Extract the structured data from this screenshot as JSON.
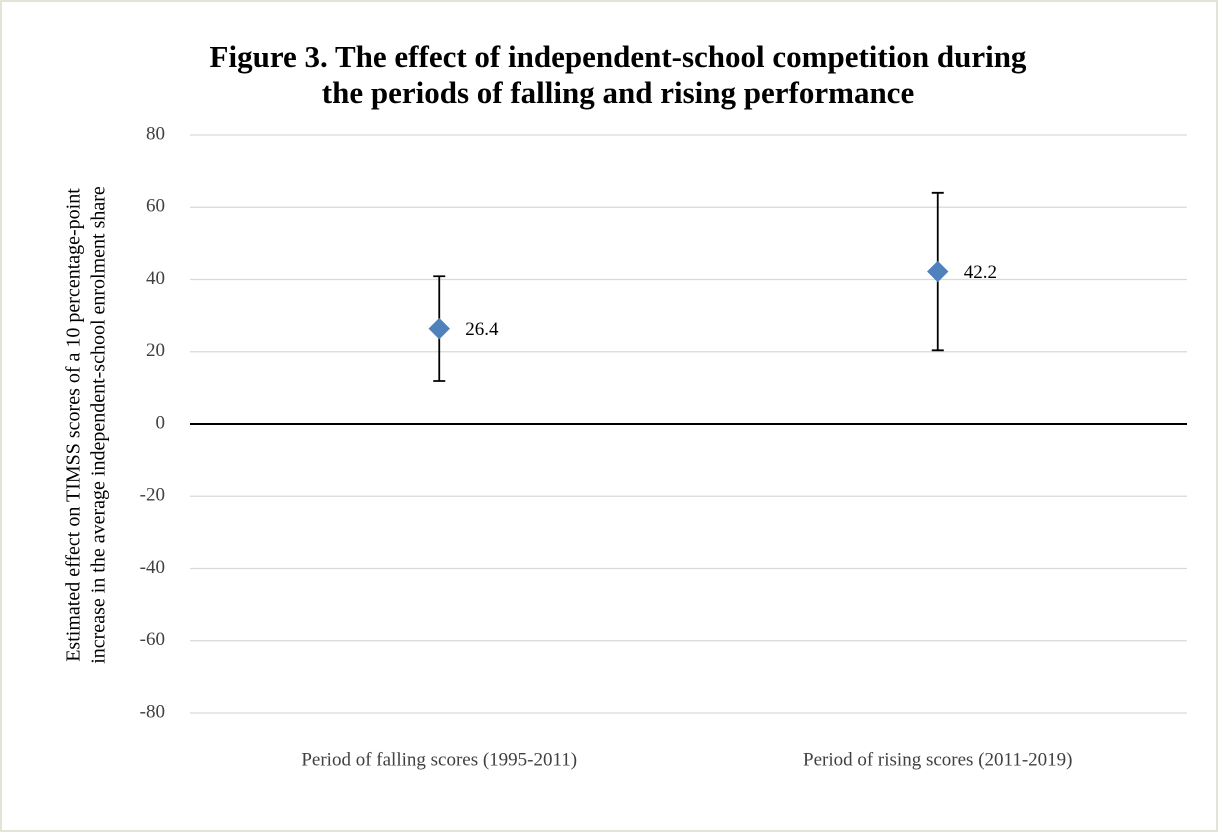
{
  "chart_data": {
    "type": "errorbar",
    "title": [
      "Figure 3. The effect of independent-school competition during",
      "the periods of falling and rising performance"
    ],
    "y_label": [
      "Estimated effect on TIMSS scores of a 10 percentage-point",
      "increase in the average independent-school enrolment share"
    ],
    "categories": [
      "Period of falling scores (1995-2011)",
      "Period of rising scores (2011-2019)"
    ],
    "values": [
      26.4,
      42.2
    ],
    "errors": [
      14.5,
      21.8
    ],
    "color": "#4f81bd",
    "ylim": [
      -80,
      80
    ],
    "yticks": [
      -80,
      -60,
      -40,
      -20,
      0,
      20,
      40,
      60,
      80
    ],
    "grid": true
  }
}
